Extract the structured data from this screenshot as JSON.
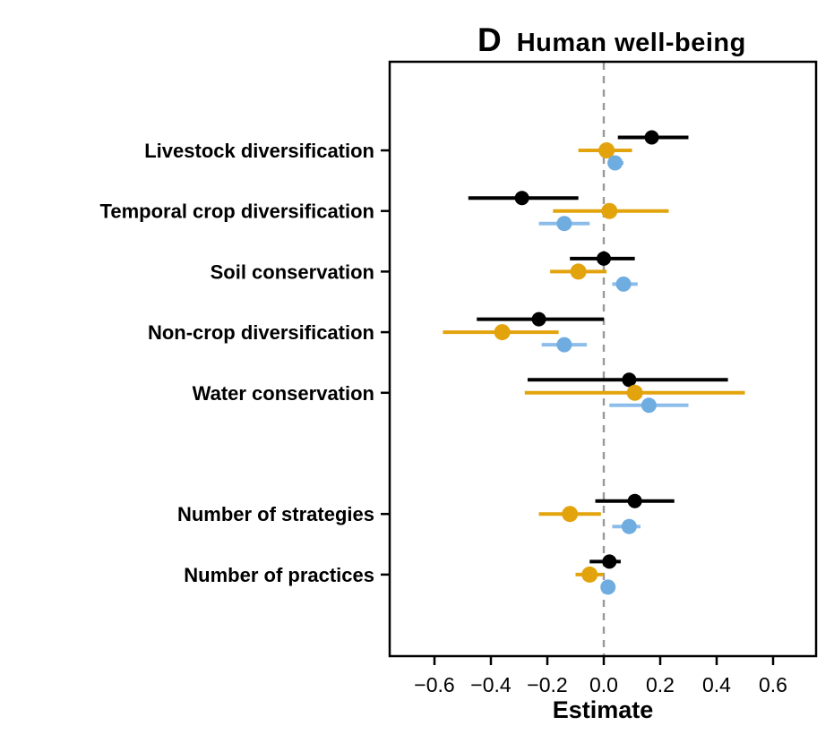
{
  "title": {
    "panel_letter": "D",
    "text": "Human well-being"
  },
  "x_axis": {
    "label": "Estimate"
  },
  "chart_data": {
    "type": "scatter",
    "subtype": "forest-plot-dot-and-interval",
    "title": "Human well-being",
    "panel_letter": "D",
    "xlabel": "Estimate",
    "ylabel": "",
    "xlim": [
      -0.76,
      0.75
    ],
    "x_ticks": [
      -0.6,
      -0.4,
      -0.2,
      0.0,
      0.2,
      0.4,
      0.6
    ],
    "x_tick_labels": [
      "−0.6",
      "−0.4",
      "−0.2",
      "0.0",
      "0.2",
      "0.4",
      "0.6"
    ],
    "zero_reference_line": 0,
    "grid": false,
    "legend_position": "none",
    "colors": {
      "black_series": "#000000",
      "orange_series": "#E2A30D",
      "blue_series": "#6FACE0",
      "blue_interval_line": "#8CBDEA",
      "zero_line": "#999999",
      "axis_box": "#000000"
    },
    "categories": [
      "Livestock diversification",
      "Temporal crop diversification",
      "Soil conservation",
      "Non-crop diversification",
      "Water conservation",
      "Number of strategies",
      "Number of practices"
    ],
    "row_slots": [
      0,
      1,
      2,
      3,
      4,
      6,
      7
    ],
    "series": [
      {
        "name": "black",
        "color": "#000000",
        "line_color": "#000000",
        "points": [
          {
            "estimate": 0.17,
            "lower": 0.05,
            "upper": 0.3
          },
          {
            "estimate": -0.29,
            "lower": -0.48,
            "upper": -0.09
          },
          {
            "estimate": 0.0,
            "lower": -0.12,
            "upper": 0.11
          },
          {
            "estimate": -0.23,
            "lower": -0.45,
            "upper": 0.0
          },
          {
            "estimate": 0.09,
            "lower": -0.27,
            "upper": 0.44
          },
          {
            "estimate": 0.11,
            "lower": -0.03,
            "upper": 0.25
          },
          {
            "estimate": 0.02,
            "lower": -0.05,
            "upper": 0.06
          }
        ]
      },
      {
        "name": "orange",
        "color": "#E2A30D",
        "line_color": "#E2A30D",
        "points": [
          {
            "estimate": 0.01,
            "lower": -0.09,
            "upper": 0.1
          },
          {
            "estimate": 0.02,
            "lower": -0.18,
            "upper": 0.23
          },
          {
            "estimate": -0.09,
            "lower": -0.19,
            "upper": 0.01
          },
          {
            "estimate": -0.36,
            "lower": -0.57,
            "upper": -0.16
          },
          {
            "estimate": 0.11,
            "lower": -0.28,
            "upper": 0.5
          },
          {
            "estimate": -0.12,
            "lower": -0.23,
            "upper": -0.01
          },
          {
            "estimate": -0.05,
            "lower": -0.1,
            "upper": 0.0
          }
        ]
      },
      {
        "name": "blue",
        "color": "#6FACE0",
        "line_color": "#8CBDEA",
        "points": [
          {
            "estimate": 0.04,
            "lower": 0.02,
            "upper": 0.07
          },
          {
            "estimate": -0.14,
            "lower": -0.23,
            "upper": -0.05
          },
          {
            "estimate": 0.07,
            "lower": 0.03,
            "upper": 0.12
          },
          {
            "estimate": -0.14,
            "lower": -0.22,
            "upper": -0.06
          },
          {
            "estimate": 0.16,
            "lower": 0.02,
            "upper": 0.3
          },
          {
            "estimate": 0.09,
            "lower": 0.03,
            "upper": 0.13
          },
          {
            "estimate": 0.015,
            "lower": 0.0,
            "upper": 0.03
          }
        ]
      }
    ]
  }
}
